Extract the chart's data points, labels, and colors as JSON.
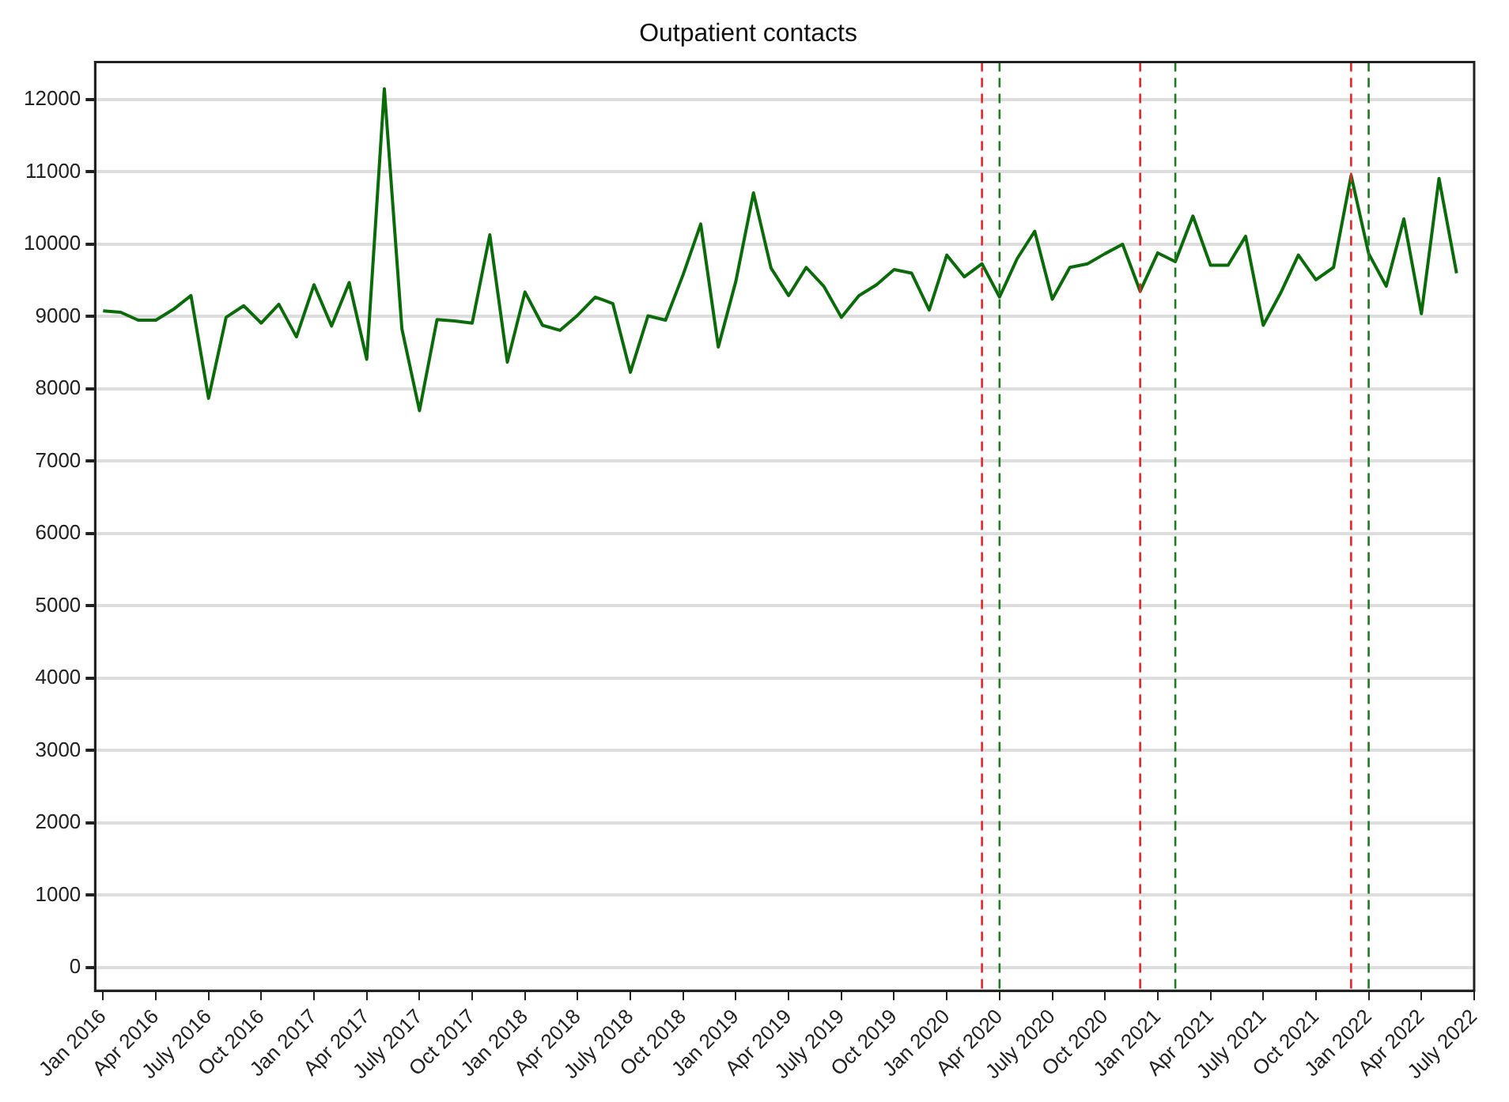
{
  "chart_data": {
    "type": "line",
    "title": "Outpatient contacts",
    "x": [
      "2016-01",
      "2016-02",
      "2016-03",
      "2016-04",
      "2016-05",
      "2016-06",
      "2016-07",
      "2016-08",
      "2016-09",
      "2016-10",
      "2016-11",
      "2016-12",
      "2017-01",
      "2017-02",
      "2017-03",
      "2017-04",
      "2017-05",
      "2017-06",
      "2017-07",
      "2017-08",
      "2017-09",
      "2017-10",
      "2017-11",
      "2017-12",
      "2018-01",
      "2018-02",
      "2018-03",
      "2018-04",
      "2018-05",
      "2018-06",
      "2018-07",
      "2018-08",
      "2018-09",
      "2018-10",
      "2018-11",
      "2018-12",
      "2019-01",
      "2019-02",
      "2019-03",
      "2019-04",
      "2019-05",
      "2019-06",
      "2019-07",
      "2019-08",
      "2019-09",
      "2019-10",
      "2019-11",
      "2019-12",
      "2020-01",
      "2020-02",
      "2020-03",
      "2020-04",
      "2020-05",
      "2020-06",
      "2020-07",
      "2020-08",
      "2020-09",
      "2020-10",
      "2020-11",
      "2020-12",
      "2021-01",
      "2021-02",
      "2021-03",
      "2021-04",
      "2021-05",
      "2021-06",
      "2021-07",
      "2021-08",
      "2021-09",
      "2021-10",
      "2021-11",
      "2021-12",
      "2022-01",
      "2022-02",
      "2022-03",
      "2022-04",
      "2022-05",
      "2022-06"
    ],
    "series": [
      {
        "color": "#0b6b0b",
        "values": [
          9080,
          9060,
          8950,
          8950,
          9100,
          9290,
          7870,
          8990,
          9150,
          8910,
          9170,
          8720,
          9440,
          8870,
          9470,
          8410,
          12150,
          8830,
          7700,
          8960,
          8940,
          8910,
          10130,
          8370,
          9340,
          8880,
          8810,
          9020,
          9270,
          9180,
          8230,
          9010,
          8950,
          9580,
          10280,
          8580,
          9490,
          10710,
          9670,
          9290,
          9680,
          9420,
          8990,
          9290,
          9440,
          9650,
          9600,
          9090,
          9850,
          9550,
          9730,
          9270,
          9800,
          10180,
          9240,
          9680,
          9730,
          9870,
          10000,
          9350,
          9880,
          9760,
          10390,
          9710,
          9710,
          10110,
          8880,
          9330,
          9850,
          9510,
          9680,
          10950,
          9870,
          9420,
          10350,
          9040,
          10910,
          9600
        ]
      }
    ],
    "xlim": [
      "2015-12-18",
      "2022-07-01"
    ],
    "xticks": [
      {
        "value": "2016-01",
        "label": "Jan 2016"
      },
      {
        "value": "2016-04",
        "label": "Apr 2016"
      },
      {
        "value": "2016-07",
        "label": "July 2016"
      },
      {
        "value": "2016-10",
        "label": "Oct 2016"
      },
      {
        "value": "2017-01",
        "label": "Jan 2017"
      },
      {
        "value": "2017-04",
        "label": "Apr 2017"
      },
      {
        "value": "2017-07",
        "label": "July 2017"
      },
      {
        "value": "2017-10",
        "label": "Oct 2017"
      },
      {
        "value": "2018-01",
        "label": "Jan 2018"
      },
      {
        "value": "2018-04",
        "label": "Apr 2018"
      },
      {
        "value": "2018-07",
        "label": "July 2018"
      },
      {
        "value": "2018-10",
        "label": "Oct 2018"
      },
      {
        "value": "2019-01",
        "label": "Jan 2019"
      },
      {
        "value": "2019-04",
        "label": "Apr 2019"
      },
      {
        "value": "2019-07",
        "label": "July 2019"
      },
      {
        "value": "2019-10",
        "label": "Oct 2019"
      },
      {
        "value": "2020-01",
        "label": "Jan 2020"
      },
      {
        "value": "2020-04",
        "label": "Apr 2020"
      },
      {
        "value": "2020-07",
        "label": "July 2020"
      },
      {
        "value": "2020-10",
        "label": "Oct 2020"
      },
      {
        "value": "2021-01",
        "label": "Jan 2021"
      },
      {
        "value": "2021-04",
        "label": "Apr 2021"
      },
      {
        "value": "2021-07",
        "label": "July 2021"
      },
      {
        "value": "2021-10",
        "label": "Oct 2021"
      },
      {
        "value": "2022-01",
        "label": "Jan 2022"
      },
      {
        "value": "2022-04",
        "label": "Apr 2022"
      },
      {
        "value": "2022-07",
        "label": "July 2022"
      }
    ],
    "ylim": [
      -320,
      12520
    ],
    "yticks": [
      0,
      1000,
      2000,
      3000,
      4000,
      5000,
      6000,
      7000,
      8000,
      9000,
      10000,
      11000,
      12000
    ],
    "grid": "y",
    "legend": false,
    "marker": "none",
    "line_style": "solid",
    "ref_lines": [
      {
        "axis": "x",
        "value": "2020-03",
        "color": "#e8242a",
        "line_style": "dashed"
      },
      {
        "axis": "x",
        "value": "2020-04",
        "color": "#1e7b1e",
        "line_style": "dashed"
      },
      {
        "axis": "x",
        "value": "2020-12",
        "color": "#e8242a",
        "line_style": "dashed"
      },
      {
        "axis": "x",
        "value": "2021-02",
        "color": "#1e7b1e",
        "line_style": "dashed"
      },
      {
        "axis": "x",
        "value": "2021-12",
        "color": "#e8242a",
        "line_style": "dashed"
      },
      {
        "axis": "x",
        "value": "2022-01",
        "color": "#1e7b1e",
        "line_style": "dashed"
      }
    ]
  }
}
